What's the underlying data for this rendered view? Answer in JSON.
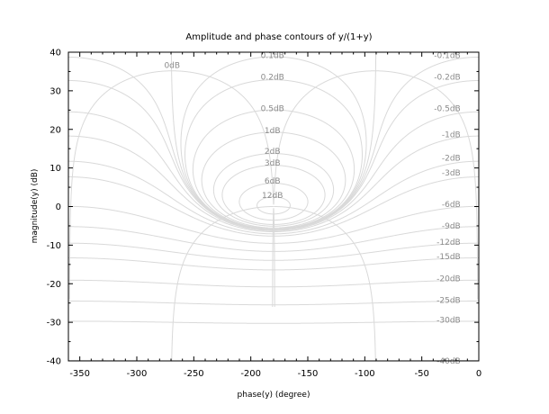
{
  "chart_data": {
    "type": "contour",
    "title": "Amplitude and phase contours of y/(1+y)",
    "xlabel": "phase(y) (degree)",
    "ylabel": "magnitude(y) (dB)",
    "xlim": [
      -360,
      0
    ],
    "ylim": [
      -40,
      40
    ],
    "xticks": [
      -350,
      -300,
      -250,
      -200,
      -150,
      -100,
      -50,
      0
    ],
    "yticks": [
      40,
      30,
      20,
      10,
      0,
      -10,
      -20,
      -30,
      -40
    ],
    "grid": false,
    "colors": {
      "contour": "#d9d9d9",
      "contour_label": "#8a8a8a",
      "axis": "#000000"
    },
    "magnitude_contours_db": [
      -40,
      -30,
      -25,
      -20,
      -15,
      -12,
      -9,
      -6,
      -3,
      -2,
      -1,
      -0.5,
      -0.2,
      -0.1,
      0,
      0.1,
      0.2,
      0.5,
      1,
      2,
      3,
      6,
      12
    ],
    "phase_contours_deg": [
      -1,
      -5,
      -10,
      -15,
      -20,
      -25,
      -30,
      -40,
      -50,
      -60,
      -70,
      -80,
      -90,
      -100,
      -120,
      -140,
      -160,
      -170,
      -175,
      -179
    ],
    "contour_labels": [
      {
        "text": "0dB",
        "x": -269,
        "y": 36.6
      },
      {
        "text": "0.1dB",
        "x": -181,
        "y": 39.2
      },
      {
        "text": "0.2dB",
        "x": -181,
        "y": 33.6
      },
      {
        "text": "0.5dB",
        "x": -181,
        "y": 25.4
      },
      {
        "text": "1dB",
        "x": -181,
        "y": 19.7
      },
      {
        "text": "2dB",
        "x": -181,
        "y": 14.4
      },
      {
        "text": "3dB",
        "x": -181,
        "y": 11.3
      },
      {
        "text": "6dB",
        "x": -181,
        "y": 6.6
      },
      {
        "text": "12dB",
        "x": -181,
        "y": 2.9
      },
      {
        "text": "-0.1dB",
        "x": -16,
        "y": 39.2
      },
      {
        "text": "-0.2dB",
        "x": -16,
        "y": 33.6
      },
      {
        "text": "-0.5dB",
        "x": -16,
        "y": 25.4
      },
      {
        "text": "-1dB",
        "x": -16,
        "y": 18.7
      },
      {
        "text": "-2dB",
        "x": -16,
        "y": 12.6
      },
      {
        "text": "-3dB",
        "x": -16,
        "y": 8.8
      },
      {
        "text": "-6dB",
        "x": -16,
        "y": 0.6
      },
      {
        "text": "-9dB",
        "x": -16,
        "y": -5.0
      },
      {
        "text": "-12dB",
        "x": -16,
        "y": -9.2
      },
      {
        "text": "-15dB",
        "x": -16,
        "y": -12.9
      },
      {
        "text": "-20dB",
        "x": -16,
        "y": -18.7
      },
      {
        "text": "-25dB",
        "x": -16,
        "y": -24.2
      },
      {
        "text": "-30dB",
        "x": -16,
        "y": -29.4
      },
      {
        "text": "-40dB",
        "x": -16,
        "y": -40.0
      }
    ]
  }
}
